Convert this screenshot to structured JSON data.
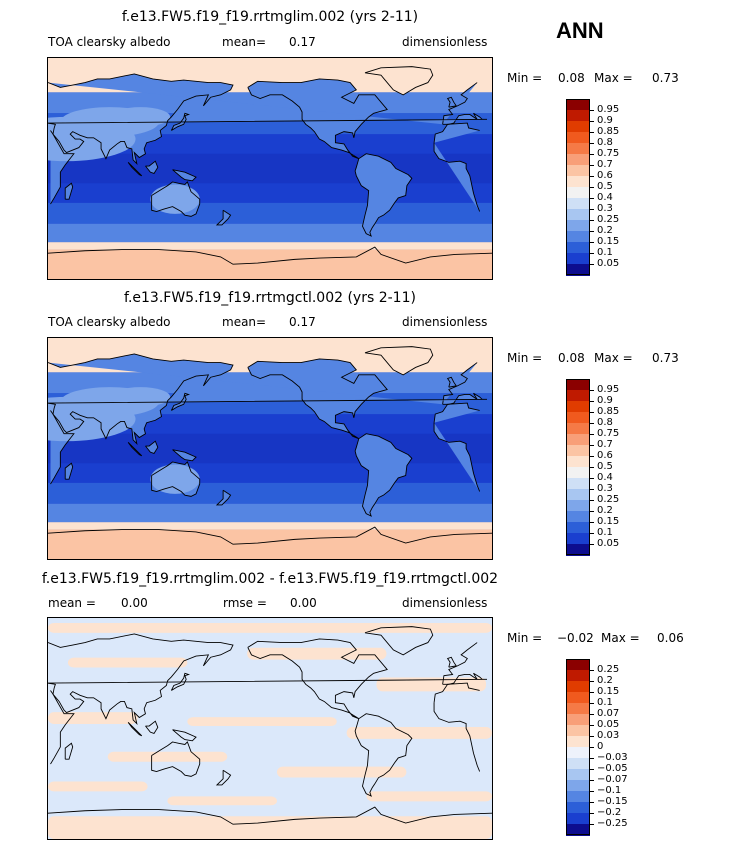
{
  "season": "ANN",
  "panels": [
    {
      "id": "p1",
      "title": "f.e13.FW5.f19_f19.rrtmglim.002 (yrs 2-11)",
      "left_text": "TOA clearsky albedo",
      "mean_label": "mean=",
      "mean_value": "0.17",
      "units": "dimensionless",
      "min_label": "Min =",
      "min_value": "0.08",
      "max_label": "Max =",
      "max_value": "0.73",
      "levels": [
        "0.95",
        "0.9",
        "0.85",
        "0.8",
        "0.75",
        "0.7",
        "0.6",
        "0.5",
        "0.4",
        "0.3",
        "0.25",
        "0.2",
        "0.15",
        "0.1",
        "0.05"
      ],
      "colors": [
        "#8b0000",
        "#bf1a00",
        "#e03c00",
        "#f05a1e",
        "#f57a46",
        "#f89f78",
        "#fbc4a4",
        "#fde3d0",
        "#f2f2f2",
        "#cfe0f6",
        "#a8c6f1",
        "#7ea6ea",
        "#5585e2",
        "#2c5fd8",
        "#1a3fcf",
        "#0d0d8f"
      ]
    },
    {
      "id": "p2",
      "title": "f.e13.FW5.f19_f19.rrtmgctl.002 (yrs 2-11)",
      "left_text": "TOA clearsky albedo",
      "mean_label": "mean=",
      "mean_value": "0.17",
      "units": "dimensionless",
      "min_label": "Min =",
      "min_value": "0.08",
      "max_label": "Max =",
      "max_value": "0.73",
      "levels": [
        "0.95",
        "0.9",
        "0.85",
        "0.8",
        "0.75",
        "0.7",
        "0.6",
        "0.5",
        "0.4",
        "0.3",
        "0.25",
        "0.2",
        "0.15",
        "0.1",
        "0.05"
      ],
      "colors": [
        "#8b0000",
        "#bf1a00",
        "#e03c00",
        "#f05a1e",
        "#f57a46",
        "#f89f78",
        "#fbc4a4",
        "#fde3d0",
        "#f2f2f2",
        "#cfe0f6",
        "#a8c6f1",
        "#7ea6ea",
        "#5585e2",
        "#2c5fd8",
        "#1a3fcf",
        "#0d0d8f"
      ]
    },
    {
      "id": "p3",
      "title": "f.e13.FW5.f19_f19.rrtmglim.002 - f.e13.FW5.f19_f19.rrtmgctl.002",
      "mean_label": "mean =",
      "mean_value": "0.00",
      "rmse_label": "rmse =",
      "rmse_value": "0.00",
      "units": "dimensionless",
      "min_label": "Min =",
      "min_value": "−0.02",
      "max_label": "Max =",
      "max_value": "0.06",
      "levels": [
        "0.25",
        "0.2",
        "0.15",
        "0.1",
        "0.07",
        "0.05",
        "0.03",
        "0",
        "−0.03",
        "−0.05",
        "−0.07",
        "−0.1",
        "−0.15",
        "−0.2",
        "−0.25"
      ],
      "colors": [
        "#8b0000",
        "#bf1a00",
        "#e03c00",
        "#f05a1e",
        "#f57a46",
        "#f89f78",
        "#fbc4a4",
        "#fde3d0",
        "#eef2fb",
        "#cfe0f6",
        "#a8c6f1",
        "#7ea6ea",
        "#5585e2",
        "#2c5fd8",
        "#1a3fcf",
        "#0d0d8f"
      ]
    }
  ],
  "chart_data": [
    {
      "type": "heatmap",
      "title": "f.e13.FW5.f19_f19.rrtmglim.002 (yrs 2-11)",
      "variable": "TOA clearsky albedo",
      "units": "dimensionless",
      "mean": 0.17,
      "min": 0.08,
      "max": 0.73,
      "contour_levels": [
        0.05,
        0.1,
        0.15,
        0.2,
        0.25,
        0.3,
        0.4,
        0.5,
        0.6,
        0.7,
        0.75,
        0.8,
        0.85,
        0.9,
        0.95
      ]
    },
    {
      "type": "heatmap",
      "title": "f.e13.FW5.f19_f19.rrtmgctl.002 (yrs 2-11)",
      "variable": "TOA clearsky albedo",
      "units": "dimensionless",
      "mean": 0.17,
      "min": 0.08,
      "max": 0.73,
      "contour_levels": [
        0.05,
        0.1,
        0.15,
        0.2,
        0.25,
        0.3,
        0.4,
        0.5,
        0.6,
        0.7,
        0.75,
        0.8,
        0.85,
        0.9,
        0.95
      ]
    },
    {
      "type": "heatmap",
      "title": "f.e13.FW5.f19_f19.rrtmglim.002 - f.e13.FW5.f19_f19.rrtmgctl.002",
      "units": "dimensionless",
      "mean": 0.0,
      "rmse": 0.0,
      "min": -0.02,
      "max": 0.06,
      "contour_levels": [
        -0.25,
        -0.2,
        -0.15,
        -0.1,
        -0.07,
        -0.05,
        -0.03,
        0,
        0.03,
        0.05,
        0.07,
        0.1,
        0.15,
        0.2,
        0.25
      ]
    }
  ]
}
